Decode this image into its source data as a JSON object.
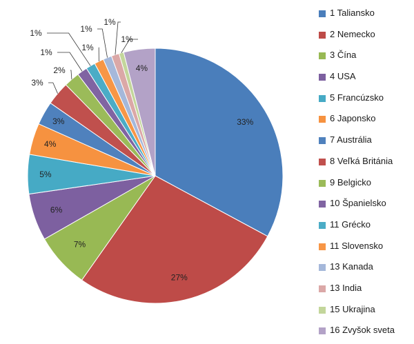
{
  "chart_data": {
    "type": "pie",
    "start_angle_deg": 0,
    "direction": "clockwise",
    "slices": [
      {
        "label": "1 Taliansko",
        "value": 33,
        "display": "33%",
        "color": "#4A7EBB"
      },
      {
        "label": "2 Nemecko",
        "value": 27,
        "display": "27%",
        "color": "#BE4B48"
      },
      {
        "label": "3 Čína",
        "value": 7,
        "display": "7%",
        "color": "#98B954"
      },
      {
        "label": "4 USA",
        "value": 6,
        "display": "6%",
        "color": "#7D60A0"
      },
      {
        "label": "5 Francúzsko",
        "value": 5,
        "display": "5%",
        "color": "#46AAC5"
      },
      {
        "label": "6 Japonsko",
        "value": 4,
        "display": "4%",
        "color": "#F69240"
      },
      {
        "label": "7 Austrália",
        "value": 3,
        "display": "3%",
        "color": "#4F81BD"
      },
      {
        "label": "8 Veľká Británia",
        "value": 3,
        "display": "3%",
        "color": "#C0504D"
      },
      {
        "label": "9 Belgicko",
        "value": 2,
        "display": "2%",
        "color": "#9BBB59"
      },
      {
        "label": "10 Španielsko",
        "value": 1.3,
        "display": "1%",
        "color": "#8064A2"
      },
      {
        "label": "11 Grécko",
        "value": 1.2,
        "display": "1%",
        "color": "#4BACC6"
      },
      {
        "label": "11 Slovensko",
        "value": 1.2,
        "display": "1%",
        "color": "#F79646"
      },
      {
        "label": "13 Kanada",
        "value": 1.1,
        "display": "1%",
        "color": "#A5B8DA"
      },
      {
        "label": "13 India",
        "value": 1.0,
        "display": "1%",
        "color": "#DBA8A7"
      },
      {
        "label": "15 Ukrajina",
        "value": 0.6,
        "display": "1%",
        "color": "#C3D69B"
      },
      {
        "label": "16 Zvyšok sveta",
        "value": 4,
        "display": "4%",
        "color": "#B3A2C7"
      }
    ],
    "title": "",
    "legend_position": "right"
  }
}
